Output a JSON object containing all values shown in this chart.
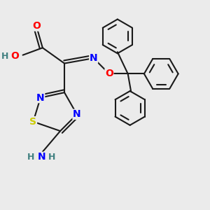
{
  "bg_color": "#ebebeb",
  "bond_color": "#1a1a1a",
  "N_color": "#0000ff",
  "O_color": "#ff0000",
  "S_color": "#cccc00",
  "H_color": "#408080",
  "figsize": [
    3.0,
    3.0
  ],
  "dpi": 100,
  "xlim": [
    0,
    10
  ],
  "ylim": [
    0,
    10
  ]
}
